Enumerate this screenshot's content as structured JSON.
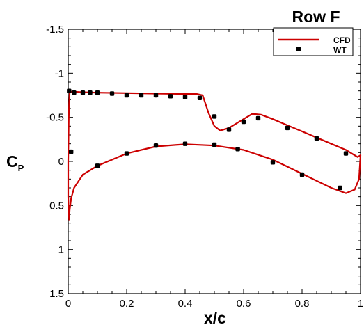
{
  "chart_data": {
    "type": "line",
    "title": "Row F",
    "xlabel": "x/c",
    "ylabel_main": "C",
    "ylabel_sub": "P",
    "xlim": [
      0,
      1
    ],
    "ylim": [
      1.5,
      -1.5
    ],
    "y_inverted": true,
    "x_ticks": [
      0,
      0.2,
      0.4,
      0.6,
      0.8,
      1
    ],
    "x_tick_labels": [
      "0",
      "0.2",
      "0.4",
      "0.6",
      "0.8",
      "1"
    ],
    "y_ticks": [
      -1.5,
      -1,
      -0.5,
      0,
      0.5,
      1,
      1.5
    ],
    "y_tick_labels": [
      "-1.5",
      "-1",
      "-0.5",
      "0",
      "0.5",
      "1",
      "1.5"
    ],
    "grid": false,
    "legend_position": "top-right",
    "colors": {
      "cfd": "#cc0000",
      "wt": "#000000"
    },
    "series": [
      {
        "name": "CFD",
        "style": "line",
        "x": [
          0.003,
          0.005,
          0.01,
          0.02,
          0.05,
          0.1,
          0.2,
          0.3,
          0.4,
          0.44,
          0.46,
          0.48,
          0.5,
          0.52,
          0.55,
          0.6,
          0.63,
          0.66,
          0.7,
          0.75,
          0.8,
          0.85,
          0.9,
          0.95,
          0.99,
          1.0,
          0.995,
          0.98,
          0.95,
          0.9,
          0.85,
          0.8,
          0.7,
          0.6,
          0.5,
          0.4,
          0.3,
          0.2,
          0.1,
          0.05,
          0.02,
          0.01,
          0.005,
          0.003,
          0.0,
          0.0,
          0.002,
          0.003
        ],
        "y": [
          -0.65,
          -0.78,
          -0.79,
          -0.79,
          -0.785,
          -0.78,
          -0.775,
          -0.77,
          -0.765,
          -0.765,
          -0.75,
          -0.55,
          -0.4,
          -0.35,
          -0.38,
          -0.48,
          -0.54,
          -0.53,
          -0.48,
          -0.41,
          -0.34,
          -0.27,
          -0.2,
          -0.13,
          -0.05,
          -0.07,
          0.2,
          0.32,
          0.36,
          0.3,
          0.22,
          0.14,
          -0.02,
          -0.13,
          -0.18,
          -0.195,
          -0.17,
          -0.09,
          0.05,
          0.15,
          0.3,
          0.42,
          0.55,
          0.66,
          0.4,
          0.0,
          -0.5,
          -0.65
        ]
      },
      {
        "name": "WT",
        "style": "marker",
        "x": [
          0.003,
          0.02,
          0.05,
          0.075,
          0.1,
          0.15,
          0.2,
          0.25,
          0.3,
          0.35,
          0.4,
          0.45,
          0.5,
          0.55,
          0.6,
          0.65,
          0.75,
          0.85,
          0.95,
          0.01,
          0.1,
          0.2,
          0.3,
          0.4,
          0.5,
          0.58,
          0.7,
          0.8,
          0.93
        ],
        "y": [
          -0.8,
          -0.78,
          -0.78,
          -0.78,
          -0.78,
          -0.77,
          -0.75,
          -0.75,
          -0.75,
          -0.74,
          -0.73,
          -0.72,
          -0.51,
          -0.36,
          -0.45,
          -0.49,
          -0.38,
          -0.26,
          -0.09,
          -0.11,
          0.05,
          -0.09,
          -0.18,
          -0.2,
          -0.19,
          -0.14,
          0.01,
          0.15,
          0.3
        ]
      }
    ]
  }
}
